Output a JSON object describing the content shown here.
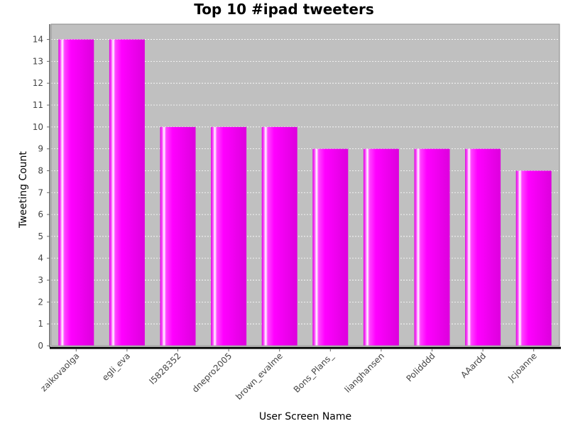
{
  "chart_data": {
    "type": "bar",
    "title": "Top 10 #ipad tweeters",
    "xlabel": "User Screen Name",
    "ylabel": "Tweeting Count",
    "categories": [
      "zaikovaolga",
      "egli_eva",
      "l5828352",
      "dnepro2005",
      "brown_evalme",
      "Bons_Plans_",
      "lianghansen",
      "Polidddd",
      "AAardd",
      "Jcjoanne"
    ],
    "values": [
      14,
      14,
      10,
      10,
      10,
      9,
      9,
      9,
      9,
      8
    ],
    "ylim": [
      0,
      14.7
    ],
    "yticks": [
      0,
      1,
      2,
      3,
      4,
      5,
      6,
      7,
      8,
      9,
      10,
      11,
      12,
      13,
      14
    ],
    "grid": true,
    "legend": "none",
    "colors": {
      "bar": "#ff00ff",
      "bar_dark": "#cc00cc",
      "bar_highlight": "#ffffff",
      "plot_background": "#c0c0c0",
      "gridline": "#ffffff"
    }
  }
}
